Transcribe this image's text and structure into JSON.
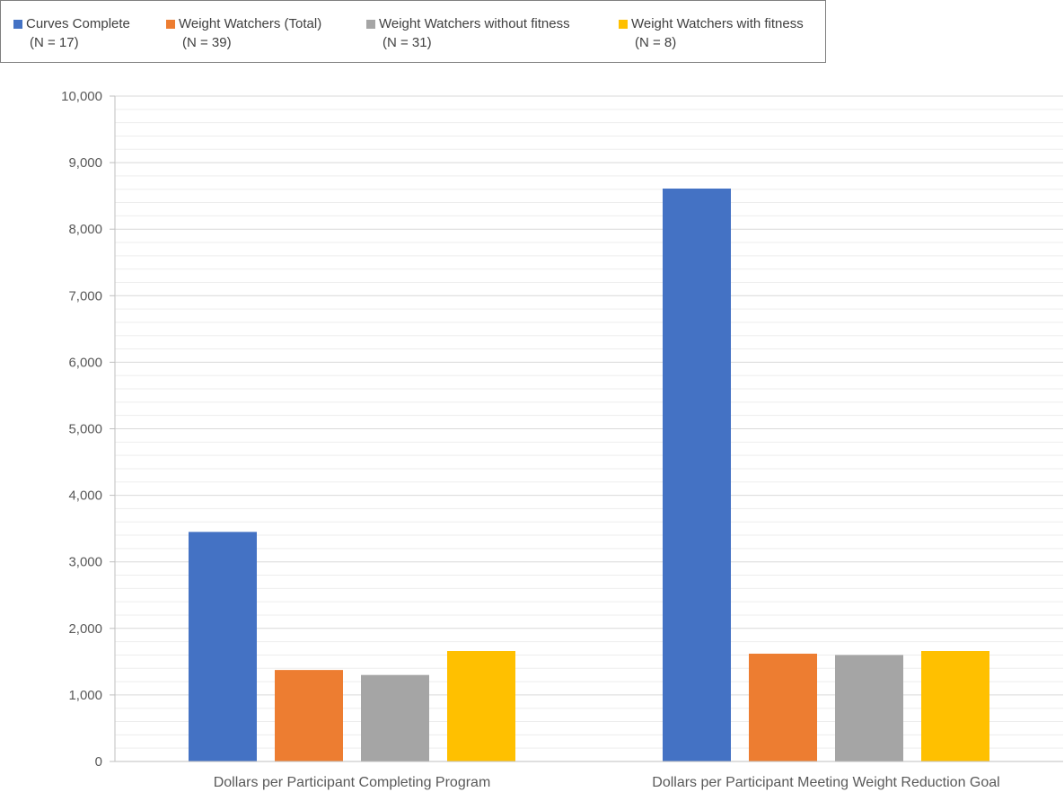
{
  "legend": {
    "items": [
      {
        "name": "Curves Complete",
        "n": "(N = 17)",
        "color": "#4472C4"
      },
      {
        "name": "Weight Watchers (Total)",
        "n": "(N = 39)",
        "color": "#ED7D31"
      },
      {
        "name": "Weight Watchers without fitness",
        "n": "(N = 31)",
        "color": "#A5A5A5"
      },
      {
        "name": "Weight Watchers with fitness",
        "n": "(N = 8)",
        "color": "#FFC000"
      }
    ]
  },
  "chart_data": {
    "type": "bar",
    "title": "",
    "xlabel": "",
    "ylabel": "",
    "categories": [
      "Dollars per Participant Completing Program",
      "Dollars per Participant Meeting Weight Reduction Goal"
    ],
    "series": [
      {
        "name": "Curves Complete (N = 17)",
        "color": "#4472C4",
        "values": [
          3450,
          8610
        ]
      },
      {
        "name": "Weight Watchers (Total) (N = 39)",
        "color": "#ED7D31",
        "values": [
          1375,
          1620
        ]
      },
      {
        "name": "Weight Watchers without fitness (N = 31)",
        "color": "#A5A5A5",
        "values": [
          1300,
          1600
        ]
      },
      {
        "name": "Weight Watchers with fitness (N = 8)",
        "color": "#FFC000",
        "values": [
          1660,
          1660
        ]
      }
    ],
    "ylim": [
      0,
      10000
    ],
    "major_ticks": [
      0,
      1000,
      2000,
      3000,
      4000,
      5000,
      6000,
      7000,
      8000,
      9000,
      10000
    ],
    "minor_step": 200,
    "tick_labels": [
      "0",
      "1,000",
      "2,000",
      "3,000",
      "4,000",
      "5,000",
      "6,000",
      "7,000",
      "8,000",
      "9,000",
      "10,000"
    ],
    "grid": true,
    "legend_position": "top"
  }
}
